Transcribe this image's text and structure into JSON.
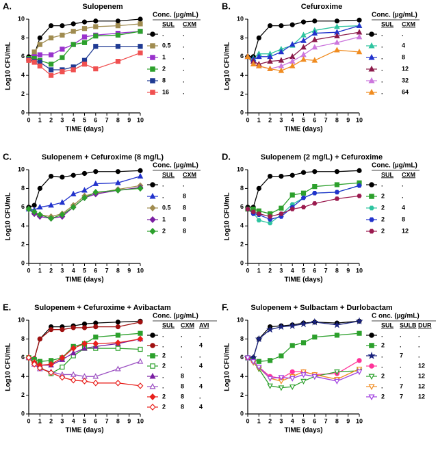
{
  "chart_data": [
    {
      "type": "line",
      "panel": "A.",
      "title": "Sulopenem",
      "xlabel": "TIME (days)",
      "ylabel": "Log10 CFU/mL",
      "x": [
        0,
        0.5,
        1,
        2,
        3,
        4,
        5,
        6,
        8,
        10
      ],
      "xlim": [
        0,
        10
      ],
      "xticks": [
        0,
        1,
        2,
        3,
        4,
        5,
        6,
        7,
        8,
        9,
        10
      ],
      "ylim": [
        0,
        10
      ],
      "yticks": [
        0,
        2,
        4,
        6,
        8,
        10
      ],
      "legend": {
        "title": "Conc. (µg/mL)",
        "columns": [
          "SUL",
          "CXM"
        ]
      },
      "series": [
        {
          "labels": [
            ".",
            "."
          ],
          "color": "#000000",
          "marker": "circle",
          "filled": true,
          "values": [
            6,
            6.2,
            8,
            9.3,
            9.3,
            9.5,
            9.7,
            9.8,
            9.8,
            10
          ]
        },
        {
          "labels": [
            "0.5",
            "."
          ],
          "color": "#a08c50",
          "marker": "square",
          "filled": true,
          "values": [
            5.8,
            6.5,
            7.3,
            8,
            8.3,
            8.7,
            9,
            9.2,
            9.3,
            9.5
          ]
        },
        {
          "labels": [
            "1",
            "."
          ],
          "color": "#9932cc",
          "marker": "square",
          "filled": true,
          "values": [
            5.8,
            6,
            6.2,
            6.2,
            6.8,
            7.3,
            8.1,
            8.3,
            8.5,
            8.7
          ]
        },
        {
          "labels": [
            "2",
            "."
          ],
          "color": "#2ca02c",
          "marker": "square",
          "filled": true,
          "values": [
            5.8,
            5.8,
            5.6,
            5.2,
            5.9,
            7.3,
            7.5,
            8.2,
            8.3,
            8.7
          ]
        },
        {
          "labels": [
            "8",
            "."
          ],
          "color": "#1f3a93",
          "marker": "square",
          "filled": true,
          "values": [
            5.7,
            5.5,
            5.4,
            4.6,
            4.6,
            4.9,
            5.6,
            7.1,
            7.1,
            7.1
          ]
        },
        {
          "labels": [
            "16",
            "."
          ],
          "color": "#f05050",
          "marker": "square",
          "filled": true,
          "values": [
            5.6,
            5.4,
            5,
            4,
            4.4,
            4.6,
            5.2,
            4.7,
            5.5,
            6.4
          ]
        }
      ]
    },
    {
      "type": "line",
      "panel": "B.",
      "title": "Cefuroxime",
      "xlabel": "TIME (days)",
      "ylabel": "Log10 CFU/mL",
      "x": [
        0,
        0.5,
        1,
        2,
        3,
        4,
        5,
        6,
        8,
        10
      ],
      "xlim": [
        0,
        10
      ],
      "xticks": [
        0,
        1,
        2,
        3,
        4,
        5,
        6,
        7,
        8,
        9,
        10
      ],
      "ylim": [
        0,
        10
      ],
      "yticks": [
        0,
        2,
        4,
        6,
        8,
        10
      ],
      "legend": {
        "title": "Conc. (µg/mL)",
        "columns": [
          "SUL",
          "CXM"
        ]
      },
      "series": [
        {
          "labels": [
            ".",
            "."
          ],
          "color": "#000000",
          "marker": "circle",
          "filled": true,
          "values": [
            6,
            6,
            8,
            9.3,
            9.3,
            9.4,
            9.7,
            9.8,
            9.8,
            9.9
          ]
        },
        {
          "labels": [
            ".",
            "4"
          ],
          "color": "#2ec4a0",
          "marker": "triangle",
          "filled": true,
          "values": [
            6,
            5.8,
            6.3,
            6.3,
            6.8,
            7.2,
            8.3,
            8.8,
            9.2,
            9.3
          ]
        },
        {
          "labels": [
            ".",
            "8"
          ],
          "color": "#2233cc",
          "marker": "triangle",
          "filled": true,
          "values": [
            6,
            5.7,
            6,
            6,
            6.5,
            7.3,
            7.7,
            8.5,
            8.6,
            9.3
          ]
        },
        {
          "labels": [
            ".",
            "12"
          ],
          "color": "#8b1a4a",
          "marker": "triangle",
          "filled": true,
          "values": [
            6,
            5.5,
            5.2,
            5.5,
            5.6,
            6,
            7,
            7.8,
            8.2,
            8.6
          ]
        },
        {
          "labels": [
            ".",
            "32"
          ],
          "color": "#cc77dd",
          "marker": "triangle",
          "filled": true,
          "values": [
            6,
            5.2,
            5,
            4.7,
            5,
            5.5,
            6.2,
            7,
            7.5,
            8.1
          ]
        },
        {
          "labels": [
            ".",
            "64"
          ],
          "color": "#f08c20",
          "marker": "triangle",
          "filled": true,
          "values": [
            6,
            5.2,
            5,
            4.7,
            4.5,
            5,
            5.7,
            5.6,
            6.7,
            6.5
          ]
        }
      ]
    },
    {
      "type": "line",
      "panel": "C.",
      "title": "Sulopenem + Cefuroxime (8 mg/L)",
      "xlabel": "TIME (days)",
      "ylabel": "Log10 CFU/mL",
      "x": [
        0,
        0.5,
        1,
        2,
        3,
        4,
        5,
        6,
        8,
        10
      ],
      "xlim": [
        0,
        10
      ],
      "xticks": [
        0,
        1,
        2,
        3,
        4,
        5,
        6,
        7,
        8,
        9,
        10
      ],
      "ylim": [
        0,
        10
      ],
      "yticks": [
        0,
        2,
        4,
        6,
        8,
        10
      ],
      "legend": {
        "title": "Conc. (µg/mL)",
        "columns": [
          "SUL",
          "CXM"
        ]
      },
      "series": [
        {
          "labels": [
            ".",
            "."
          ],
          "color": "#000000",
          "marker": "circle",
          "filled": true,
          "values": [
            6,
            6.2,
            8,
            9.3,
            9.2,
            9.4,
            9.6,
            9.8,
            9.8,
            9.9
          ]
        },
        {
          "labels": [
            ".",
            "8"
          ],
          "color": "#2233cc",
          "marker": "triangle",
          "filled": true,
          "values": [
            5.8,
            5.7,
            6,
            6.2,
            6.5,
            7.4,
            7.8,
            8.5,
            8.6,
            9.3
          ]
        },
        {
          "labels": [
            "0.5",
            "8"
          ],
          "color": "#a08c50",
          "marker": "diamond",
          "filled": true,
          "values": [
            5.8,
            5.3,
            5.2,
            5,
            5.3,
            6.2,
            7.2,
            7.5,
            7.9,
            8.3
          ]
        },
        {
          "labels": [
            "1",
            "8"
          ],
          "color": "#7a1fa2",
          "marker": "diamond",
          "filled": true,
          "values": [
            5.8,
            5.3,
            5,
            4.8,
            5,
            6,
            7,
            7.4,
            7.8,
            8.1
          ]
        },
        {
          "labels": [
            "2",
            "8"
          ],
          "color": "#2ca02c",
          "marker": "diamond",
          "filled": true,
          "values": [
            5.8,
            5.5,
            5.2,
            4.8,
            5.2,
            6,
            7,
            7.6,
            7.8,
            8
          ]
        }
      ]
    },
    {
      "type": "line",
      "panel": "D.",
      "title": "Sulopenem (2 mg/L) + Cefuroxime",
      "xlabel": "TIME (days)",
      "ylabel": "Log10 CFU/mL",
      "x": [
        0,
        0.5,
        1,
        2,
        3,
        4,
        5,
        6,
        8,
        10
      ],
      "xlim": [
        0,
        10
      ],
      "xticks": [
        0,
        1,
        2,
        3,
        4,
        5,
        6,
        7,
        8,
        9,
        10
      ],
      "ylim": [
        0,
        10
      ],
      "yticks": [
        0,
        2,
        4,
        6,
        8,
        10
      ],
      "legend": {
        "title": "Conc. (µg/mL)",
        "columns": [
          "SUL",
          "CXM"
        ]
      },
      "series": [
        {
          "labels": [
            ".",
            "."
          ],
          "color": "#000000",
          "marker": "circle",
          "filled": true,
          "values": [
            6,
            6,
            8,
            9.3,
            9.3,
            9.4,
            9.7,
            9.8,
            9.8,
            9.9
          ]
        },
        {
          "labels": [
            "2",
            "."
          ],
          "color": "#2ca02c",
          "marker": "square",
          "filled": true,
          "values": [
            5.8,
            5.8,
            5.6,
            5.3,
            5.9,
            7.3,
            7.5,
            8.2,
            8.4,
            8.6
          ]
        },
        {
          "labels": [
            "2",
            "4"
          ],
          "color": "#2ec4a0",
          "marker": "hexagon",
          "filled": true,
          "values": [
            5.8,
            5.4,
            4.6,
            4.3,
            5.2,
            6.3,
            7,
            7.5,
            7.6,
            8.3
          ]
        },
        {
          "labels": [
            "2",
            "8"
          ],
          "color": "#2233cc",
          "marker": "hexagon",
          "filled": true,
          "values": [
            5.8,
            5.3,
            5.2,
            4.7,
            5,
            6,
            7,
            7.5,
            7.6,
            8.3
          ]
        },
        {
          "labels": [
            "2",
            "12"
          ],
          "color": "#9b1b4f",
          "marker": "hexagon",
          "filled": true,
          "values": [
            5.8,
            5.5,
            5.3,
            5,
            5.3,
            5.8,
            6,
            6.4,
            6.9,
            7.2
          ]
        }
      ]
    },
    {
      "type": "line",
      "panel": "E.",
      "title": "Sulopenem + Cefuroxime + Avibactam",
      "xlabel": "TIME (days)",
      "ylabel": "Log10 CFU/mL",
      "x": [
        0,
        0.5,
        1,
        2,
        3,
        4,
        5,
        6,
        8,
        10
      ],
      "xlim": [
        0,
        10
      ],
      "xticks": [
        0,
        1,
        2,
        3,
        4,
        5,
        6,
        7,
        8,
        9,
        10
      ],
      "ylim": [
        0,
        10
      ],
      "yticks": [
        0,
        2,
        4,
        6,
        8,
        10
      ],
      "legend": {
        "title": "Conc. (µg/mL)",
        "columns": [
          "SUL",
          "CXM",
          "AVI"
        ]
      },
      "series": [
        {
          "labels": [
            ".",
            ".",
            "."
          ],
          "color": "#000000",
          "marker": "circle",
          "filled": true,
          "values": [
            6,
            5.9,
            8,
            9.3,
            9.3,
            9.4,
            9.6,
            9.7,
            9.8,
            9.9
          ]
        },
        {
          "labels": [
            ".",
            ".",
            "4"
          ],
          "color": "#a01010",
          "marker": "circle",
          "filled": true,
          "values": [
            6,
            5.9,
            8,
            9,
            9,
            9.2,
            9.2,
            9.3,
            9.3,
            9.8
          ]
        },
        {
          "labels": [
            "2",
            ".",
            "."
          ],
          "color": "#2ca02c",
          "marker": "square",
          "filled": true,
          "values": [
            6,
            5.8,
            5.6,
            5.7,
            6,
            7.2,
            7.5,
            8.2,
            8.4,
            8.6
          ]
        },
        {
          "labels": [
            "2",
            ".",
            "4"
          ],
          "color": "#2ca02c",
          "marker": "square",
          "filled": false,
          "values": [
            6,
            5.6,
            5,
            4.3,
            5,
            6.2,
            7,
            7,
            7,
            6.9
          ]
        },
        {
          "labels": [
            ".",
            "8",
            "."
          ],
          "color": "#7a1fa2",
          "marker": "triangle",
          "filled": true,
          "values": [
            6,
            5.5,
            5.2,
            5.2,
            5.8,
            6.5,
            7,
            7.2,
            7.5,
            8
          ]
        },
        {
          "labels": [
            ".",
            "8",
            "4"
          ],
          "color": "#9b4fc2",
          "marker": "triangle",
          "filled": false,
          "values": [
            6,
            5.3,
            4.8,
            4.5,
            4.2,
            4.2,
            4,
            4,
            4.8,
            5.6
          ]
        },
        {
          "labels": [
            "2",
            "8",
            "."
          ],
          "color": "#e8201c",
          "marker": "diamond",
          "filled": true,
          "values": [
            6,
            5.5,
            5.2,
            5.3,
            6,
            7,
            7.5,
            7.5,
            7.6,
            8
          ]
        },
        {
          "labels": [
            "2",
            "8",
            "4"
          ],
          "color": "#e8201c",
          "marker": "diamond",
          "filled": false,
          "values": [
            6,
            5.3,
            4.9,
            4.4,
            3.9,
            3.6,
            3.5,
            3.3,
            3.3,
            3
          ]
        }
      ]
    },
    {
      "type": "line",
      "panel": "F.",
      "title": "Sulopenem + Sulbactam + Durlobactam",
      "xlabel": "TIME (days)",
      "ylabel": "Log10 CFU/mL",
      "x": [
        0,
        0.5,
        1,
        2,
        3,
        4,
        5,
        6,
        8,
        10
      ],
      "xlim": [
        0,
        10
      ],
      "xticks": [
        0,
        1,
        2,
        3,
        4,
        5,
        6,
        7,
        8,
        9,
        10
      ],
      "ylim": [
        0,
        10
      ],
      "yticks": [
        0,
        2,
        4,
        6,
        8,
        10
      ],
      "legend": {
        "title": "C onc. (µg/mL)",
        "columns": [
          "SUL",
          "SULB",
          "DUR"
        ]
      },
      "series": [
        {
          "labels": [
            ".",
            ".",
            "."
          ],
          "color": "#000000",
          "marker": "circle",
          "filled": true,
          "values": [
            6,
            6,
            8,
            9.3,
            9.4,
            9.5,
            9.7,
            9.8,
            9.7,
            9.9
          ]
        },
        {
          "labels": [
            "2",
            ".",
            "."
          ],
          "color": "#2ca02c",
          "marker": "square",
          "filled": true,
          "values": [
            6,
            5.8,
            5.6,
            5.7,
            6.2,
            7.3,
            7.6,
            8.2,
            8.4,
            8.6
          ]
        },
        {
          "labels": [
            ".",
            "7",
            "."
          ],
          "color": "#1a237e",
          "marker": "star",
          "filled": true,
          "values": [
            6,
            6,
            8,
            9,
            9.3,
            9.4,
            9.6,
            9.8,
            9.5,
            9.9
          ]
        },
        {
          "labels": [
            ".",
            ".",
            "12"
          ],
          "color": "#ff3399",
          "marker": "circle",
          "filled": true,
          "values": [
            6,
            5.6,
            5,
            4,
            3.8,
            4.5,
            4.5,
            4.2,
            4.3,
            5.7
          ]
        },
        {
          "labels": [
            "2",
            ".",
            "12"
          ],
          "color": "#2ca02c",
          "marker": "tridown",
          "filled": false,
          "values": [
            6,
            5.5,
            4.8,
            3,
            2.8,
            2.9,
            3.5,
            4,
            4.5,
            4.6
          ]
        },
        {
          "labels": [
            ".",
            "7",
            "12"
          ],
          "color": "#f08c20",
          "marker": "tridown",
          "filled": false,
          "values": [
            6,
            5.5,
            4.9,
            3.8,
            3.5,
            4,
            4.5,
            4.2,
            3.7,
            4.8
          ]
        },
        {
          "labels": [
            "2",
            "7",
            "12"
          ],
          "color": "#a040e0",
          "marker": "tridown",
          "filled": false,
          "values": [
            6,
            5.6,
            5,
            3.8,
            3.9,
            3.8,
            4.2,
            4,
            3.5,
            4.5
          ]
        }
      ]
    }
  ]
}
